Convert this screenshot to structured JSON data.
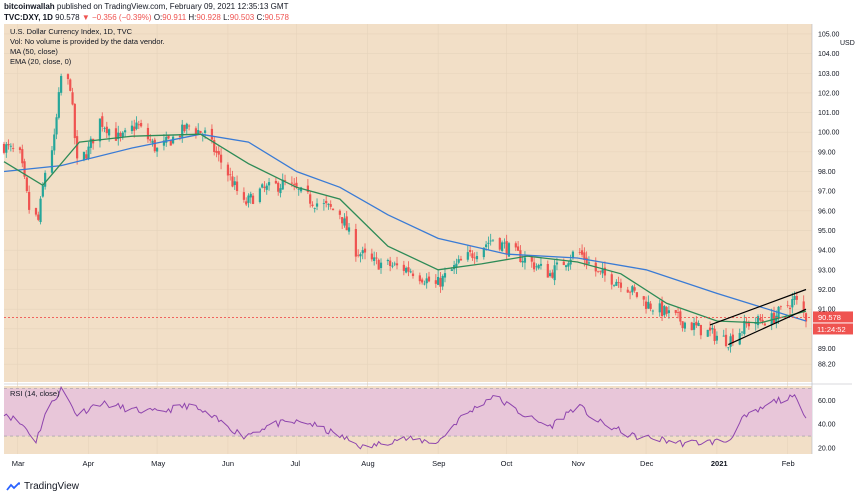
{
  "header": {
    "publish_user": "bitcoinwallah",
    "publish_text": "published on TradingView.com, February 09, 2021 12:35:13 GMT",
    "symbol": "TVC:DXY, 1D",
    "last": "90.578",
    "change": "▼ −0.356 (−0.39%)",
    "o_label": "O:",
    "o": "90.911",
    "h_label": "H:",
    "h": "90.928",
    "l_label": "L:",
    "l": "90.503",
    "c_label": "C:",
    "c": "90.578"
  },
  "legend": {
    "title": "U.S. Dollar Currency Index, 1D, TVC",
    "vol": "Vol: No volume is provided by the data vendor.",
    "ma": "MA (50, close)",
    "ema": "EMA (20, close, 0)"
  },
  "rsi_label": "RSI (14, close)",
  "price_tag": "90.578",
  "time_tag": "11:24:52",
  "currency": "USD",
  "footer": {
    "brand": "TradingView"
  },
  "colors": {
    "bg": "#f2dfc7",
    "up": "#26a69a",
    "down": "#ef5350",
    "ma": "#3a7bd5",
    "ema": "#2e8b57",
    "rsi": "#8e44ad",
    "rsi_band": "#e8c6d9"
  },
  "chart_data": [
    {
      "type": "candlestick",
      "title": "U.S. Dollar Currency Index, 1D, TVC",
      "ylabel": "USD",
      "ylim": [
        87.6,
        105.2
      ],
      "yticks": [
        88.2,
        89.0,
        90.0,
        91.0,
        92.0,
        93.0,
        94.0,
        95.0,
        96.0,
        97.0,
        98.0,
        99.0,
        100.0,
        101.0,
        102.0,
        103.0,
        104.0,
        105.0
      ],
      "x_labels": [
        "Mar",
        "Apr",
        "May",
        "Jun",
        "Jul",
        "Aug",
        "Sep",
        "Oct",
        "Nov",
        "Dec",
        "2021",
        "Feb"
      ],
      "x_label_dates": [
        "2020-03-01",
        "2020-04-01",
        "2020-05-01",
        "2020-06-01",
        "2020-07-01",
        "2020-08-01",
        "2020-09-01",
        "2020-10-01",
        "2020-11-01",
        "2020-12-01",
        "2021-01-01",
        "2021-02-01"
      ],
      "date_range": [
        "2020-02-24",
        "2021-02-09"
      ],
      "close_path": [
        [
          "2020-02-24",
          99.3
        ],
        [
          "2020-03-02",
          98.8
        ],
        [
          "2020-03-06",
          96.1
        ],
        [
          "2020-03-10",
          95.5
        ],
        [
          "2020-03-13",
          98.0
        ],
        [
          "2020-03-17",
          99.6
        ],
        [
          "2020-03-20",
          102.8
        ],
        [
          "2020-03-24",
          102.4
        ],
        [
          "2020-03-27",
          98.4
        ],
        [
          "2020-04-01",
          99.1
        ],
        [
          "2020-04-06",
          100.6
        ],
        [
          "2020-04-15",
          99.6
        ],
        [
          "2020-04-22",
          100.4
        ],
        [
          "2020-05-01",
          99.1
        ],
        [
          "2020-05-15",
          100.3
        ],
        [
          "2020-05-22",
          99.9
        ],
        [
          "2020-06-01",
          97.9
        ],
        [
          "2020-06-08",
          96.3
        ],
        [
          "2020-06-15",
          97.0
        ],
        [
          "2020-06-26",
          97.4
        ],
        [
          "2020-07-08",
          96.5
        ],
        [
          "2020-07-20",
          95.9
        ],
        [
          "2020-07-27",
          94.0
        ],
        [
          "2020-08-03",
          93.4
        ],
        [
          "2020-08-12",
          93.2
        ],
        [
          "2020-08-20",
          93.0
        ],
        [
          "2020-08-31",
          92.2
        ],
        [
          "2020-09-10",
          93.3
        ],
        [
          "2020-09-25",
          94.6
        ],
        [
          "2020-10-05",
          93.8
        ],
        [
          "2020-10-20",
          92.8
        ],
        [
          "2020-11-01",
          94.0
        ],
        [
          "2020-11-10",
          92.8
        ],
        [
          "2020-11-20",
          92.4
        ],
        [
          "2020-12-01",
          91.3
        ],
        [
          "2020-12-10",
          90.8
        ],
        [
          "2020-12-20",
          90.2
        ],
        [
          "2021-01-06",
          89.4
        ],
        [
          "2021-01-15",
          90.3
        ],
        [
          "2021-01-25",
          90.5
        ],
        [
          "2021-02-04",
          91.5
        ],
        [
          "2021-02-09",
          90.578
        ]
      ],
      "series": [
        {
          "name": "MA (50, close)",
          "values": [
            [
              "2020-02-24",
              98.0
            ],
            [
              "2020-03-20",
              98.3
            ],
            [
              "2020-04-20",
              99.2
            ],
            [
              "2020-05-20",
              99.9
            ],
            [
              "2020-06-10",
              99.5
            ],
            [
              "2020-07-01",
              98.0
            ],
            [
              "2020-07-20",
              97.2
            ],
            [
              "2020-08-10",
              95.8
            ],
            [
              "2020-09-01",
              94.6
            ],
            [
              "2020-10-01",
              93.8
            ],
            [
              "2020-11-01",
              93.6
            ],
            [
              "2020-12-01",
              93.0
            ],
            [
              "2021-01-01",
              91.8
            ],
            [
              "2021-02-09",
              90.4
            ]
          ]
        },
        {
          "name": "EMA (20, close, 0)",
          "values": [
            [
              "2020-02-24",
              98.5
            ],
            [
              "2020-03-12",
              97.3
            ],
            [
              "2020-03-28",
              99.5
            ],
            [
              "2020-04-20",
              99.8
            ],
            [
              "2020-05-20",
              99.9
            ],
            [
              "2020-06-10",
              98.4
            ],
            [
              "2020-07-01",
              97.2
            ],
            [
              "2020-07-20",
              96.6
            ],
            [
              "2020-08-10",
              94.2
            ],
            [
              "2020-09-01",
              93.0
            ],
            [
              "2020-09-20",
              93.3
            ],
            [
              "2020-10-10",
              93.7
            ],
            [
              "2020-11-01",
              93.4
            ],
            [
              "2020-11-20",
              92.8
            ],
            [
              "2020-12-10",
              91.3
            ],
            [
              "2021-01-01",
              90.4
            ],
            [
              "2021-01-20",
              90.3
            ],
            [
              "2021-02-09",
              90.9
            ]
          ]
        }
      ],
      "last_value": 90.578
    },
    {
      "type": "line",
      "title": "RSI (14, close)",
      "ylim": [
        15,
        72
      ],
      "yticks": [
        20.0,
        40.0,
        60.0
      ],
      "band": [
        30,
        70
      ],
      "series": [
        {
          "name": "RSI (14, close)",
          "values": [
            [
              "2020-02-24",
              50
            ],
            [
              "2020-03-04",
              38
            ],
            [
              "2020-03-09",
              26
            ],
            [
              "2020-03-13",
              48
            ],
            [
              "2020-03-20",
              70
            ],
            [
              "2020-03-27",
              48
            ],
            [
              "2020-04-06",
              58
            ],
            [
              "2020-04-20",
              52
            ],
            [
              "2020-05-01",
              50
            ],
            [
              "2020-05-15",
              56
            ],
            [
              "2020-05-25",
              46
            ],
            [
              "2020-06-08",
              30
            ],
            [
              "2020-06-20",
              40
            ],
            [
              "2020-07-05",
              42
            ],
            [
              "2020-07-20",
              30
            ],
            [
              "2020-07-31",
              20
            ],
            [
              "2020-08-15",
              28
            ],
            [
              "2020-09-01",
              25
            ],
            [
              "2020-09-10",
              44
            ],
            [
              "2020-09-25",
              64
            ],
            [
              "2020-10-10",
              46
            ],
            [
              "2020-10-20",
              38
            ],
            [
              "2020-11-01",
              56
            ],
            [
              "2020-11-10",
              42
            ],
            [
              "2020-11-25",
              30
            ],
            [
              "2020-12-05",
              28
            ],
            [
              "2020-12-17",
              24
            ],
            [
              "2021-01-06",
              26
            ],
            [
              "2021-01-12",
              44
            ],
            [
              "2021-01-20",
              52
            ],
            [
              "2021-01-27",
              60
            ],
            [
              "2021-02-04",
              62
            ],
            [
              "2021-02-09",
              48
            ]
          ]
        }
      ]
    }
  ]
}
